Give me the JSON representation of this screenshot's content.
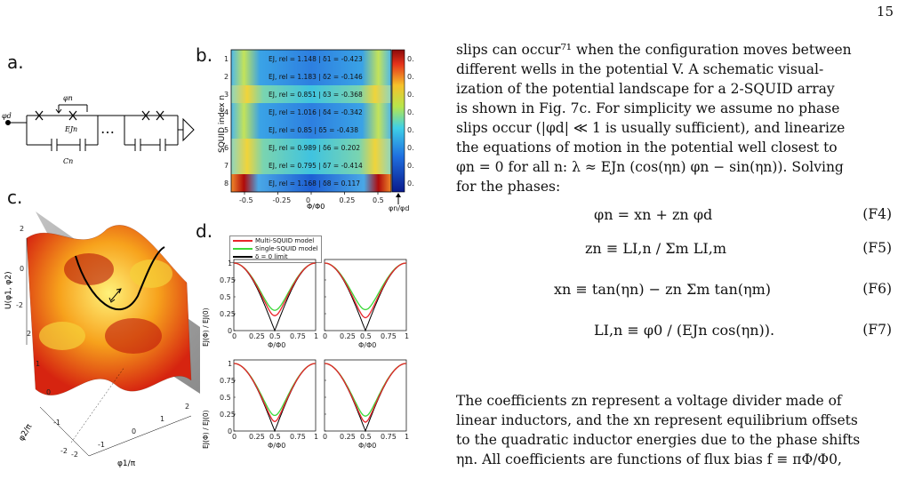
{
  "page_number": "15",
  "panels": {
    "a": {
      "label": "a.",
      "phi_n": "φn",
      "phi_d": "φd",
      "E_Jn": "EJn",
      "C_n": "Cn",
      "dots": "…"
    },
    "b": {
      "label": "b.",
      "ylabel": "SQUID index n",
      "xlabel": "Φ/Φ0",
      "arrow_label": "φn/φd",
      "xticks": [
        "-0.5",
        "-0.25",
        "0",
        "0.25",
        "0.5"
      ],
      "row_indices": [
        "1",
        "2",
        "3",
        "4",
        "5",
        "6",
        "7",
        "8"
      ],
      "colorbar_ticks": [
        "0.22",
        "0.2",
        "0.18",
        "0.16",
        "0.14",
        "0.12",
        "0.1",
        "0.08"
      ]
    },
    "c": {
      "label": "c.",
      "zlabel": "U(φ1, φ2)",
      "xlabel": "φ1/π",
      "ylabel": "φ2/π",
      "zticks": [
        "2",
        "0",
        "-2"
      ],
      "x_ticks": [
        "-2",
        "-1",
        "0",
        "1",
        "2"
      ],
      "y_ticks": [
        "2",
        "1",
        "0",
        "-1",
        "-2"
      ]
    },
    "d": {
      "label": "d.",
      "legend": [
        "Multi-SQUID model",
        "Single-SQUID model",
        "δ = 0 limit"
      ],
      "ylabel": "EJ(Φ) / EJ(0)",
      "xlabel": "Φ/Φ0",
      "yticks": [
        "1",
        "0.75",
        "0.5",
        "0.25",
        "0"
      ],
      "xticks": [
        "0",
        "0.25",
        "0.5",
        "0.75",
        "1"
      ]
    }
  },
  "chart_data": [
    {
      "type": "heatmap",
      "title": "",
      "xlabel": "Φ/Φ0",
      "ylabel": "SQUID index n",
      "xlim": [
        -0.6,
        0.6
      ],
      "clim": [
        0.07,
        0.23
      ],
      "rows": [
        {
          "n": 1,
          "text": "EJ, rel = 1.148  |  δ1 = -0.423"
        },
        {
          "n": 2,
          "text": "EJ, rel = 1.183  |  δ2 = -0.146"
        },
        {
          "n": 3,
          "text": "EJ, rel = 0.851  |  δ3 = -0.368"
        },
        {
          "n": 4,
          "text": "EJ, rel = 1.016  |  δ4 = -0.342"
        },
        {
          "n": 5,
          "text": "EJ, rel = 0.85  |  δ5 = -0.438"
        },
        {
          "n": 6,
          "text": "EJ, rel = 0.989  |  δ6 = 0.202"
        },
        {
          "n": 7,
          "text": "EJ, rel = 0.795  |  δ7 = -0.414"
        },
        {
          "n": 8,
          "text": "EJ, rel = 1.168  |  δ8 = 0.117"
        }
      ]
    },
    {
      "type": "line",
      "title": "",
      "xlabel": "Φ/Φ0",
      "ylabel": "EJ(Φ) / EJ(0)",
      "xlim": [
        0,
        1
      ],
      "ylim": [
        0,
        1
      ],
      "series": [
        {
          "name": "Multi-SQUID model",
          "color": "#e8242a"
        },
        {
          "name": "Single-SQUID model",
          "color": "#3dd83a"
        },
        {
          "name": "δ = 0 limit",
          "color": "#000000"
        }
      ],
      "subplot_minima": [
        {
          "multi": 0.22,
          "single": 0.3
        },
        {
          "multi": 0.19,
          "single": 0.31
        },
        {
          "multi": 0.14,
          "single": 0.23
        },
        {
          "multi": 0.13,
          "single": 0.22
        }
      ]
    }
  ],
  "text_blocks": {
    "para1": [
      "slips can occur⁷¹ when the configuration moves between",
      "different wells in the potential V.  A schematic visual-",
      "ization of the potential landscape for a 2-SQUID array",
      "is shown in Fig. 7c. For simplicity we assume no phase",
      "slips occur (|φd| ≪ 1 is usually sufficient), and linearize",
      "the equations of motion in the potential well closest to",
      "φn = 0 for all n: λ ≈ EJn (cos(ηn) φn − sin(ηn)). Solving",
      "for the phases:"
    ],
    "equations": [
      {
        "expr": "φn = xn + zn φd",
        "tag": "(F4)"
      },
      {
        "expr": "zn ≡ LI,n / Σm LI,m",
        "tag": "(F5)"
      },
      {
        "expr": "xn ≡ tan(ηn) − zn Σm tan(ηm)",
        "tag": "(F6)"
      },
      {
        "expr": "LI,n ≡ φ0 / (EJn cos(ηn)).",
        "tag": "(F7)"
      }
    ],
    "para2": [
      "The coefficients zn represent a voltage divider made of",
      "linear inductors, and the xn represent equilibrium offsets",
      "to the quadratic inductor energies due to the phase shifts",
      "ηn. All coefficients are functions of flux bias f ≡ πΦ/Φ0,"
    ]
  }
}
